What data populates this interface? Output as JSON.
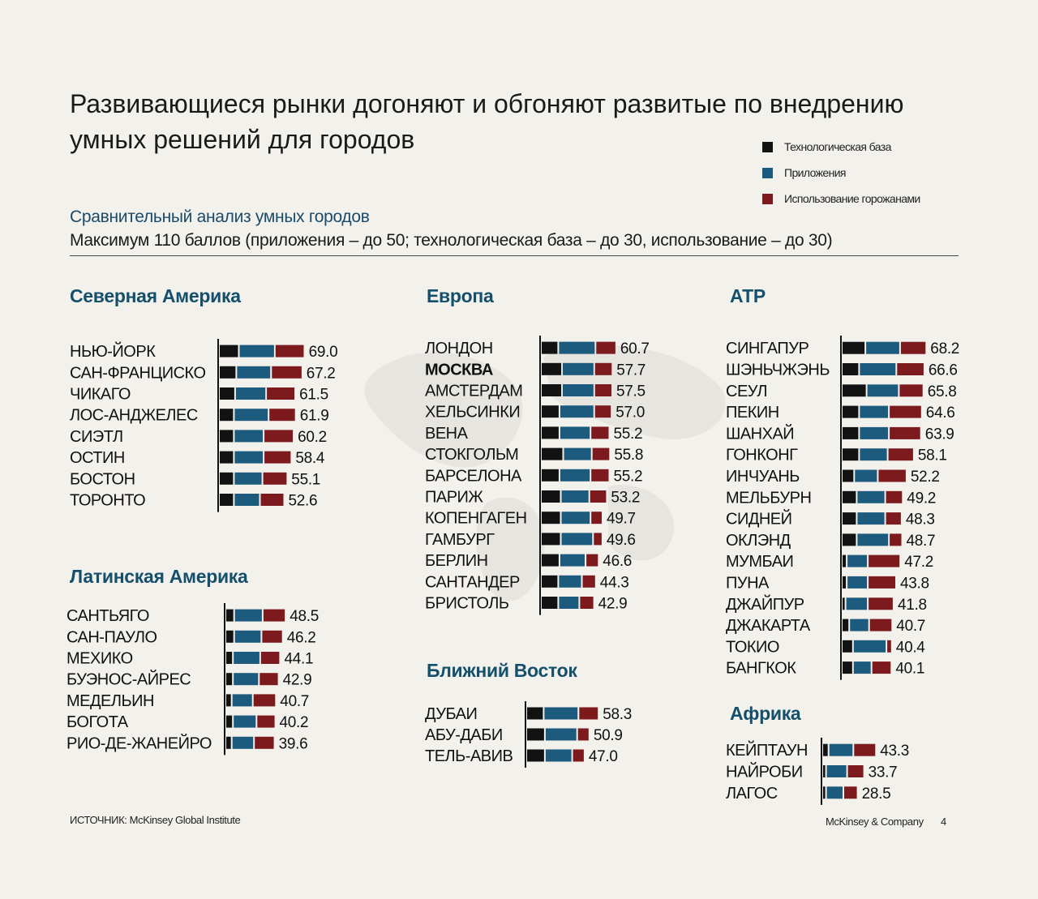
{
  "title": "Развивающиеся рынки догоняют и обгоняют развитые по внедрению\nумных решений для городов",
  "subtitle": "Сравнительный анализ умных городов",
  "subtitle2": "Максимум 110 баллов (приложения – до 50; технологическая база – до 30, использование – до 30)",
  "legend": [
    {
      "label": "Технологическая база",
      "color": "#121212"
    },
    {
      "label": "Приложения",
      "color": "#1c5b7d"
    },
    {
      "label": "Использование горожанами",
      "color": "#7c1a1e"
    }
  ],
  "source": "ИСТОЧНИК: McKinsey Global Institute",
  "footer": "McKinsey & Company",
  "page_number": "4",
  "chart_data": [
    {
      "type": "bar",
      "stacked": true,
      "orientation": "horizontal",
      "title": "Северная Америка",
      "categories": [
        "НЬЮ-ЙОРК",
        "САН-ФРАНЦИСКО",
        "ЧИКАГО",
        "ЛОС-АНДЖЕЛЕС",
        "СИЭТЛ",
        "ОСТИН",
        "БОСТОН",
        "ТОРОНТО"
      ],
      "totals": [
        "69.0",
        "67.2",
        "61.5",
        "61.9",
        "60.2",
        "58.4",
        "55.1",
        "52.6"
      ],
      "series": [
        {
          "name": "Технологическая база",
          "values": [
            16,
            14,
            13,
            12,
            12,
            12,
            12,
            12
          ]
        },
        {
          "name": "Приложения",
          "values": [
            29,
            28,
            25,
            28,
            24,
            24,
            23,
            21
          ]
        },
        {
          "name": "Использование горожанами",
          "values": [
            24,
            25.2,
            23.5,
            21.9,
            24.2,
            22.4,
            20.1,
            19.6
          ]
        }
      ]
    },
    {
      "type": "bar",
      "stacked": true,
      "orientation": "horizontal",
      "title": "Латинская Америка",
      "categories": [
        "САНТЬЯГО",
        "САН-ПАУЛО",
        "МЕХИКО",
        "БУЭНОС-АЙРЕС",
        "МЕДЕЛЬИН",
        "БОГОТА",
        "РИО-ДЕ-ЖАНЕЙРО"
      ],
      "totals": [
        "48.5",
        "46.2",
        "44.1",
        "42.9",
        "40.7",
        "40.2",
        "39.6"
      ],
      "series": [
        {
          "name": "Технологическая база",
          "values": [
            7,
            7,
            6,
            6,
            5,
            6,
            5
          ]
        },
        {
          "name": "Приложения",
          "values": [
            23,
            22,
            22,
            21,
            17,
            19,
            18
          ]
        },
        {
          "name": "Использование горожанами",
          "values": [
            18.5,
            17.2,
            16.1,
            15.9,
            18.7,
            15.2,
            16.6
          ]
        }
      ]
    },
    {
      "type": "bar",
      "stacked": true,
      "orientation": "horizontal",
      "title": "Европа",
      "categories": [
        "ЛОНДОН",
        "МОСКВА",
        "АМСТЕРДАМ",
        "ХЕЛЬСИНКИ",
        "ВЕНА",
        "СТОКГОЛЬМ",
        "БАРСЕЛОНА",
        "ПАРИЖ",
        "КОПЕНГАГЕН",
        "ГАМБУРГ",
        "БЕРЛИН",
        "САНТАНДЕР",
        "БРИСТОЛЬ"
      ],
      "totals": [
        "60.7",
        "57.7",
        "57.5",
        "57.0",
        "55.2",
        "55.8",
        "55.2",
        "53.2",
        "49.7",
        "49.6",
        "46.6",
        "44.3",
        "42.9"
      ],
      "series": [
        {
          "name": "Технологическая база",
          "values": [
            14,
            17,
            17,
            15,
            15,
            18,
            15,
            16,
            16,
            16,
            15,
            14,
            14
          ]
        },
        {
          "name": "Приложения",
          "values": [
            30,
            26,
            26,
            28,
            25,
            23,
            25,
            23,
            24,
            26,
            21,
            19,
            17
          ]
        },
        {
          "name": "Использование горожанами",
          "values": [
            16.7,
            14.7,
            14.5,
            14,
            15.2,
            14.8,
            15.2,
            14.2,
            9.7,
            7.6,
            10.6,
            11.3,
            11.9
          ]
        }
      ]
    },
    {
      "type": "bar",
      "stacked": true,
      "orientation": "horizontal",
      "title": "Ближний Восток",
      "categories": [
        "ДУБАИ",
        "АБУ-ДАБИ",
        "ТЕЛЬ-АВИВ"
      ],
      "totals": [
        "58.3",
        "50.9",
        "47.0"
      ],
      "series": [
        {
          "name": "Технологическая база",
          "values": [
            14,
            15,
            15
          ]
        },
        {
          "name": "Приложения",
          "values": [
            28,
            26,
            22
          ]
        },
        {
          "name": "Использование горожанами",
          "values": [
            16.3,
            9.9,
            10
          ]
        }
      ]
    },
    {
      "type": "bar",
      "stacked": true,
      "orientation": "horizontal",
      "title": "АТР",
      "categories": [
        "СИНГАПУР",
        "ШЭНЬЧЖЭНЬ",
        "СЕУЛ",
        "ПЕКИН",
        "ШАНХАЙ",
        "ГОНКОНГ",
        "ИНЧУАНЬ",
        "МЕЛЬБУРН",
        "СИДНЕЙ",
        "ОКЛЭНД",
        "МУМБАИ",
        "ПУНА",
        "ДЖАЙПУР",
        "ДЖАКАРТА",
        "ТОКИО",
        "БАНГКОК"
      ],
      "totals": [
        "68.2",
        "66.6",
        "65.8",
        "64.6",
        "63.9",
        "58.1",
        "52.2",
        "49.2",
        "48.3",
        "48.7",
        "47.2",
        "43.8",
        "41.8",
        "40.7",
        "40.4",
        "40.1"
      ],
      "series": [
        {
          "name": "Технологическая база",
          "values": [
            19,
            14,
            20,
            14,
            14,
            14,
            10,
            12,
            12,
            12,
            4,
            4,
            3,
            6,
            9,
            9
          ]
        },
        {
          "name": "Приложения",
          "values": [
            28,
            30,
            26,
            24,
            24,
            23,
            19,
            23,
            23,
            26,
            17,
            17,
            18,
            16,
            27,
            15
          ]
        },
        {
          "name": "Использование горожанами",
          "values": [
            21.2,
            22.6,
            19.8,
            26.6,
            25.9,
            21.1,
            23.2,
            14.2,
            13.3,
            10.7,
            26.2,
            22.8,
            20.8,
            18.7,
            4.4,
            16.1
          ]
        }
      ]
    },
    {
      "type": "bar",
      "stacked": true,
      "orientation": "horizontal",
      "title": "Африка",
      "categories": [
        "КЕЙПТАУН",
        "НАЙРОБИ",
        "ЛАГОС"
      ],
      "totals": [
        "43.3",
        "33.7",
        "28.5"
      ],
      "series": [
        {
          "name": "Технологическая база",
          "values": [
            5,
            3,
            3
          ]
        },
        {
          "name": "Приложения",
          "values": [
            20,
            17,
            14
          ]
        },
        {
          "name": "Использование горожанами",
          "values": [
            18.3,
            13.7,
            11.5
          ]
        }
      ]
    }
  ]
}
